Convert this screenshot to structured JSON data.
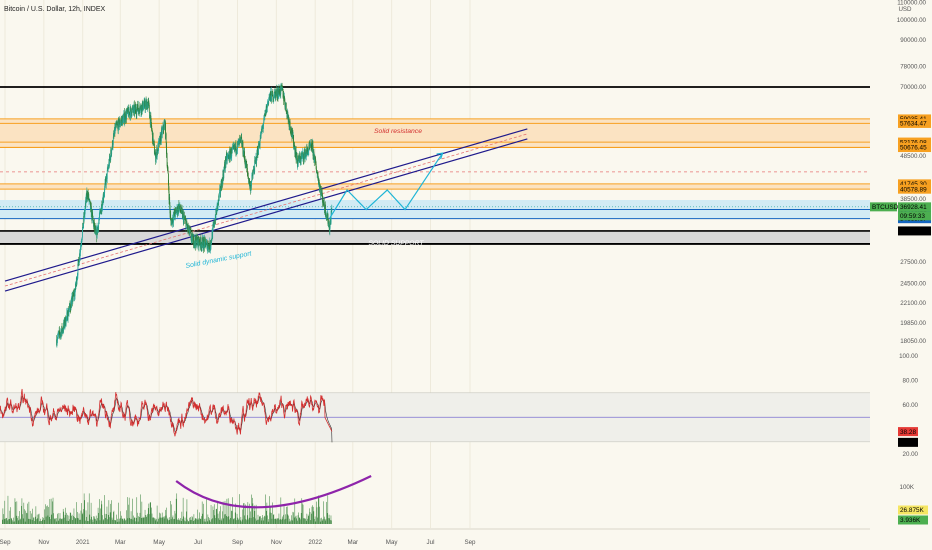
{
  "header": {
    "title": "Bitcoin / U.S. Dollar, 12h, INDEX"
  },
  "colors": {
    "background": "#faf8ef",
    "candle_up": "#26a69a",
    "candle_down": "#2e7d32",
    "resistance_zone": "#fbe3c2",
    "support_zone": "#d2ebf4",
    "solid_support_zone": "#d8d8d8",
    "channel": "#1f1a8c",
    "rsi_line": "#d32f2f",
    "rsi_signal": "#333333",
    "projection": "#1fb5d6",
    "curve": "#8e24aa",
    "volume": "#2e7d32"
  },
  "chart_data": [
    {
      "type": "candlestick",
      "panel": "price",
      "scale": "log",
      "y_axis_unit": "USD",
      "y_ticks": [
        110000,
        100000,
        90000,
        78000,
        70000,
        48500,
        38500,
        27500,
        24500,
        22100,
        19850,
        18050
      ],
      "y_tick_labels": [
        "110000.00",
        "100000.00",
        "90000.00",
        "78000.00",
        "70000.00",
        "48500.00",
        "38500.00",
        "27500.00",
        "24500.00",
        "22100.00",
        "19850.00",
        "18050.00"
      ],
      "x_tick_labels": [
        "Sep",
        "Nov",
        "2021",
        "Mar",
        "May",
        "Jul",
        "Sep",
        "Nov",
        "2022",
        "Mar",
        "May",
        "Jul",
        "Sep"
      ],
      "price_path": [
        [
          "2020-11-21",
          18200
        ],
        [
          "2020-12-01",
          19300
        ],
        [
          "2020-12-20",
          23500
        ],
        [
          "2021-01-08",
          40000
        ],
        [
          "2021-01-22",
          31500
        ],
        [
          "2021-02-21",
          56000
        ],
        [
          "2021-03-13",
          61000
        ],
        [
          "2021-04-14",
          64000
        ],
        [
          "2021-04-25",
          48000
        ],
        [
          "2021-05-10",
          58000
        ],
        [
          "2021-05-19",
          34000
        ],
        [
          "2021-06-01",
          37000
        ],
        [
          "2021-06-22",
          31000
        ],
        [
          "2021-07-20",
          30000
        ],
        [
          "2021-08-14",
          47500
        ],
        [
          "2021-09-07",
          52500
        ],
        [
          "2021-09-21",
          41000
        ],
        [
          "2021-10-20",
          66000
        ],
        [
          "2021-11-10",
          69000
        ],
        [
          "2021-11-26",
          54000
        ],
        [
          "2021-12-04",
          47000
        ],
        [
          "2021-12-27",
          51000
        ],
        [
          "2022-01-10",
          40000
        ],
        [
          "2022-01-24",
          33000
        ],
        [
          "2022-01-27",
          36900
        ]
      ],
      "horizontal_levels": [
        {
          "label": "59035.41",
          "price": 59035.41,
          "color": "#f7a020"
        },
        {
          "label": "57634.47",
          "price": 57634.47,
          "color": "#f7a020"
        },
        {
          "label": "52176.08",
          "price": 52176.08,
          "color": "#f7a020"
        },
        {
          "label": "50710.71",
          "price": 50710.71,
          "color": "#f7a020"
        },
        {
          "label": "50676.45",
          "price": 50676.45,
          "color": "#f7a020"
        },
        {
          "label": "41745.30",
          "price": 41745.3,
          "color": "#f7a020"
        },
        {
          "label": "40578.89",
          "price": 40578.89,
          "color": "#f7a020"
        },
        {
          "label": "36406.21",
          "price": 36406.21,
          "color": "#1565c0"
        },
        {
          "label": "34669.67",
          "price": 34669.67,
          "color": "#1565c0"
        },
        {
          "label": "32476.13",
          "price": 32476.13,
          "color": "#000000"
        }
      ],
      "black_lines": [
        70000,
        30300
      ],
      "dashed_level": 44500,
      "current_price": {
        "symbol": "BTCUSD",
        "price_label": "36928.41",
        "countdown": "09:59:33",
        "price": 36928.41
      },
      "zones": [
        {
          "from": 50676.45,
          "to": 59035.41,
          "kind": "resistance"
        },
        {
          "from": 40578.89,
          "to": 41745.3,
          "kind": "resistance"
        },
        {
          "from": 34669.67,
          "to": 38300,
          "kind": "support"
        },
        {
          "from": 30300,
          "to": 32476.13,
          "kind": "solid_support"
        }
      ],
      "annotations": [
        {
          "text": "Solid resistance",
          "color": "#d32f2f"
        },
        {
          "text": "SOLID SUPPORT",
          "color": "#ffffff"
        },
        {
          "text": "Solid dynamic support",
          "color": "#1fb5d6"
        }
      ],
      "channel_line": [
        [
          "2020-09-01",
          24200
        ],
        [
          "2022-11-30",
          54500
        ]
      ],
      "projection_path": [
        [
          "2022-01-24",
          34800
        ],
        [
          "2022-02-20",
          40400
        ],
        [
          "2022-03-22",
          36400
        ],
        [
          "2022-04-24",
          40400
        ],
        [
          "2022-05-22",
          36400
        ],
        [
          "2022-07-20",
          49200
        ]
      ]
    },
    {
      "type": "line",
      "panel": "rsi",
      "y_ticks": [
        100,
        80,
        60,
        20
      ],
      "y_tick_labels": [
        "100.00",
        "80.00",
        "60.00",
        "20.00"
      ],
      "levels": [
        70,
        50,
        30
      ],
      "rsi_value": {
        "label": "38.28",
        "value": 38.28
      },
      "signal_value": {
        "label": "29.50",
        "value": 29.5
      }
    },
    {
      "type": "bar",
      "panel": "volume",
      "y_tick_labels": [
        "100K"
      ],
      "volume_value": {
        "label": "26.875K"
      },
      "volume_ma": {
        "label": "3.936K"
      }
    }
  ]
}
